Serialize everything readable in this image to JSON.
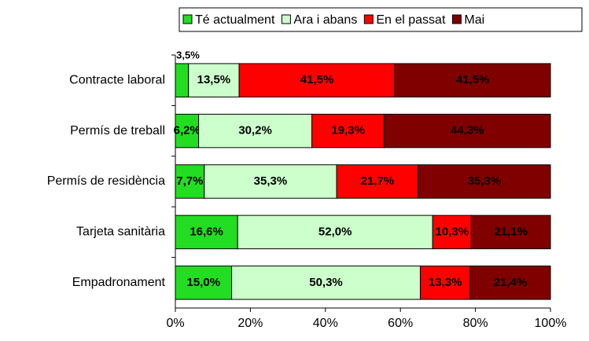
{
  "chart_data": {
    "type": "stacked_bar_horizontal",
    "categories": [
      "Contracte laboral",
      "Permís de treball",
      "Permís de residència",
      "Tarjeta sanitària",
      "Empadronament"
    ],
    "series": [
      {
        "name": "Té actualment",
        "color": "#22dd22",
        "values": [
          3.5,
          6.2,
          7.7,
          16.6,
          15.0
        ],
        "value_labels": [
          "3,5%",
          "6,2%",
          "7,7%",
          "16,6%",
          "15,0%"
        ]
      },
      {
        "name": "Ara i abans",
        "color": "#ccffcc",
        "values": [
          13.5,
          30.2,
          35.3,
          52.0,
          50.3
        ],
        "value_labels": [
          "13,5%",
          "30,2%",
          "35,3%",
          "52,0%",
          "50,3%"
        ]
      },
      {
        "name": "En el passat",
        "color": "#ff0000",
        "values": [
          41.5,
          19.3,
          21.7,
          10.3,
          13.3
        ],
        "value_labels": [
          "41,5%",
          "19,3%",
          "21,7%",
          "10,3%",
          "13,3%"
        ]
      },
      {
        "name": "Mai",
        "color": "#800000",
        "values": [
          41.5,
          44.3,
          35.3,
          21.1,
          21.4
        ],
        "value_labels": [
          "41,5%",
          "44,3%",
          "35,3%",
          "21,1%",
          "21,4%"
        ]
      }
    ],
    "xlim": [
      0,
      100
    ],
    "xticks": [
      {
        "value": 0,
        "label": "0%"
      },
      {
        "value": 20,
        "label": "20%"
      },
      {
        "value": 40,
        "label": "40%"
      },
      {
        "value": 60,
        "label": "60%"
      },
      {
        "value": 80,
        "label": "80%"
      },
      {
        "value": 100,
        "label": "100%"
      }
    ],
    "legend": "top"
  }
}
